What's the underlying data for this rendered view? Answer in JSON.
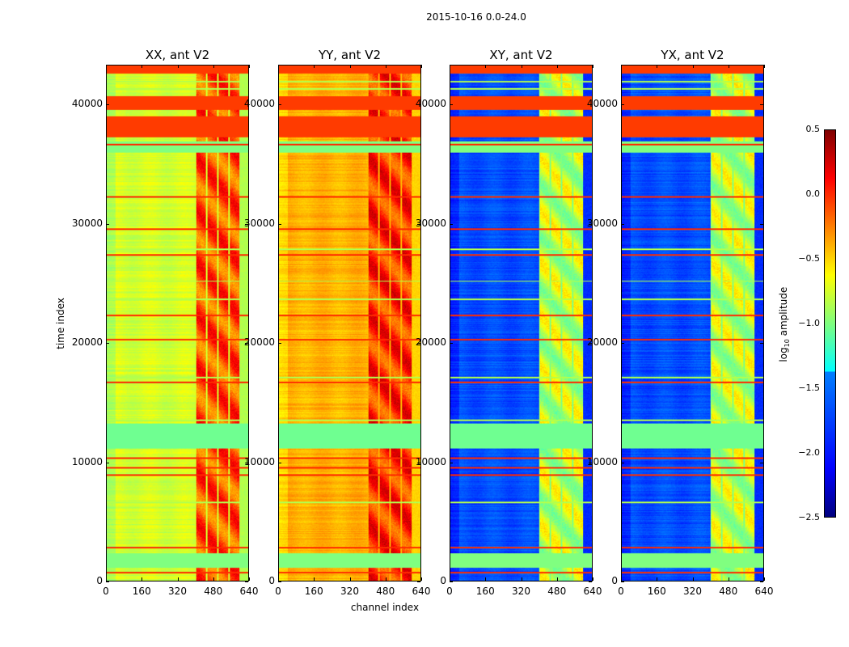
{
  "chart_data": {
    "type": "heatmap",
    "title": "2015-10-16 0.0-24.0",
    "xlabel": "channel index",
    "ylabel": "time index",
    "xlim": [
      0,
      640
    ],
    "ylim": [
      0,
      43350
    ],
    "xticks": [
      "0",
      "160",
      "320",
      "480",
      "640"
    ],
    "yticks": [
      "0",
      "10000",
      "20000",
      "30000",
      "40000"
    ],
    "colorbar": {
      "label": "log10 amplitude",
      "colormap": "jet",
      "range": [
        -2.5,
        0.5
      ],
      "ticks": [
        "0.5",
        "0.0",
        "−0.5",
        "−1.0",
        "−1.5",
        "−2.0",
        "−2.5"
      ]
    },
    "panels": [
      {
        "title": "XX, ant V2",
        "low_channel_level": -0.75,
        "high_channel_level": -0.1
      },
      {
        "title": "YY, ant V2",
        "low_channel_level": -0.4,
        "high_channel_level": 0.0
      },
      {
        "title": "XY, ant V2",
        "low_channel_level": -1.9,
        "high_channel_level": -0.8
      },
      {
        "title": "YX, ant V2",
        "low_channel_level": -1.9,
        "high_channel_level": -0.8
      }
    ],
    "flagged_time_bands": [
      {
        "from": 42700,
        "to": 43350,
        "value": -0.05
      },
      {
        "from": 39600,
        "to": 40800,
        "value": -0.05
      },
      {
        "from": 37300,
        "to": 39100,
        "value": -0.05
      },
      {
        "from": 36000,
        "to": 37000,
        "value": -1.0
      },
      {
        "from": 11100,
        "to": 13200,
        "value": -1.05
      },
      {
        "from": 1100,
        "to": 2300,
        "value": -1.0
      }
    ],
    "flagged_time_lines": [
      42000,
      41400,
      36700,
      32300,
      29600,
      27900,
      27400,
      25200,
      23700,
      22300,
      20300,
      17100,
      16700,
      13500,
      10300,
      9500,
      8900,
      6600,
      2800,
      700
    ]
  }
}
